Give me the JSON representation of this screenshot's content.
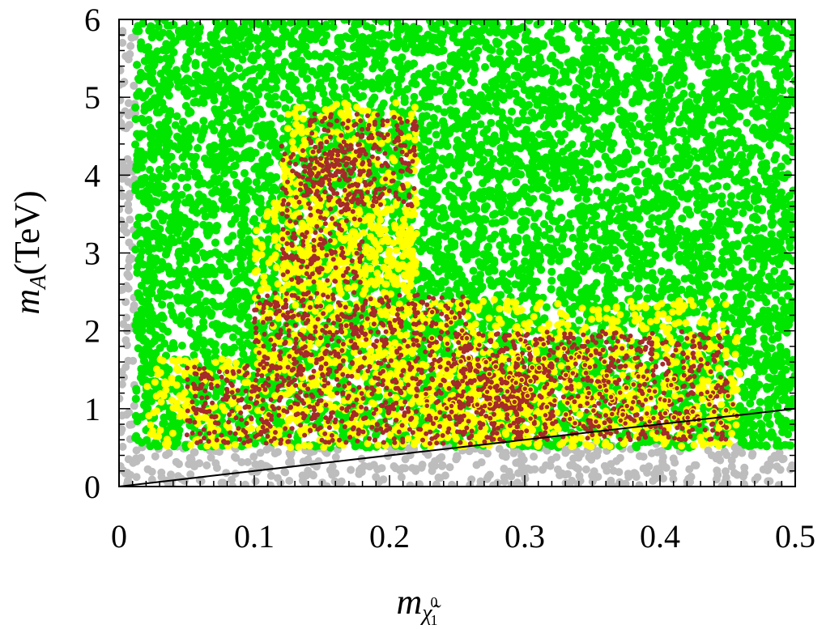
{
  "chart_data": {
    "type": "scatter",
    "title": "",
    "xlabel_main": "m",
    "xlabel_sub": "χ̃",
    "xlabel_sup": "0",
    "xlabel_sub2": "1",
    "ylabel_main": "m",
    "ylabel_sub": "A",
    "ylabel_unit": "(TeV)",
    "xlim": [
      0,
      0.5
    ],
    "ylim": [
      0,
      6
    ],
    "grid": false,
    "x_ticks": [
      "0",
      "0.1",
      "0.2",
      "0.3",
      "0.4",
      "0.5"
    ],
    "x_tick_values": [
      0,
      0.1,
      0.2,
      0.3,
      0.4,
      0.5
    ],
    "y_ticks": [
      "0",
      "1",
      "2",
      "3",
      "4",
      "5",
      "6"
    ],
    "y_tick_values": [
      0,
      1,
      2,
      3,
      4,
      5,
      6
    ],
    "colors": {
      "gray": "#bdbdbd",
      "green": "#00e600",
      "yellow": "#ffff00",
      "brown": "#a52a2a"
    },
    "series": [
      {
        "color_key": "gray",
        "regions": [
          {
            "x": [
              0.0,
              0.5
            ],
            "y": [
              0.0,
              0.55
            ]
          },
          {
            "x": [
              0.0,
              0.012
            ],
            "y": [
              0.5,
              6.0
            ]
          }
        ]
      },
      {
        "color_key": "green",
        "regions": [
          {
            "x": [
              0.012,
              0.5
            ],
            "y": [
              0.5,
              6.0
            ]
          }
        ]
      },
      {
        "color_key": "yellow",
        "regions": [
          {
            "x": [
              0.02,
              0.32
            ],
            "y": [
              0.5,
              1.65
            ]
          },
          {
            "x": [
              0.1,
              0.22
            ],
            "y": [
              1.4,
              3.7
            ]
          },
          {
            "x": [
              0.12,
              0.22
            ],
            "y": [
              2.5,
              4.95
            ]
          },
          {
            "x": [
              0.2,
              0.46
            ],
            "y": [
              0.5,
              2.4
            ]
          }
        ]
      },
      {
        "color_key": "brown",
        "regions": [
          {
            "x": [
              0.05,
              0.3
            ],
            "y": [
              0.55,
              1.55
            ]
          },
          {
            "x": [
              0.12,
              0.18
            ],
            "y": [
              2.6,
              4.4
            ]
          },
          {
            "x": [
              0.14,
              0.22
            ],
            "y": [
              3.6,
              4.8
            ]
          },
          {
            "x": [
              0.1,
              0.26
            ],
            "y": [
              1.5,
              2.5
            ]
          },
          {
            "x": [
              0.25,
              0.45
            ],
            "y": [
              0.6,
              2.0
            ]
          }
        ]
      }
    ],
    "reference_line": {
      "label": "",
      "x": [
        0,
        0.5
      ],
      "y": [
        0,
        1.0
      ]
    }
  }
}
